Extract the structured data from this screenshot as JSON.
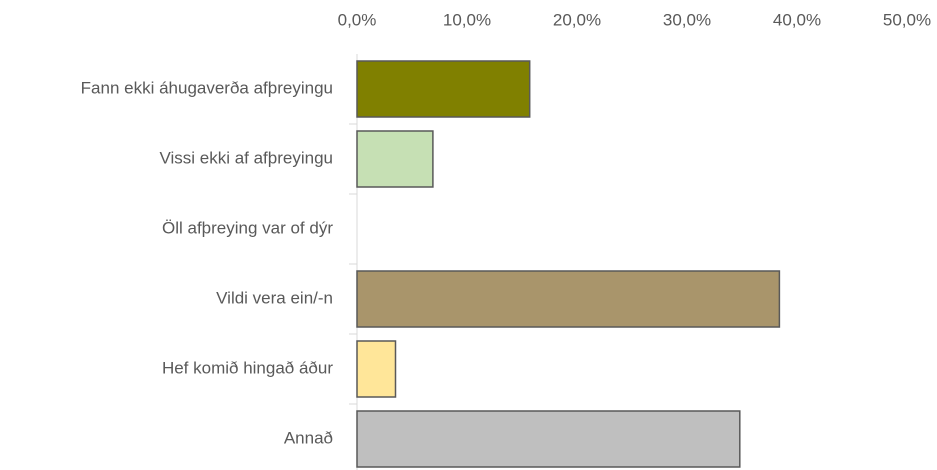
{
  "chart_data": {
    "type": "bar",
    "orientation": "horizontal",
    "categories": [
      "Fann ekki áhugaverða afþreyingu",
      "Vissi ekki af afþreyingu",
      "Öll afþreying var of dýr",
      "Vildi vera ein/-n",
      "Hef komið hingað áður",
      "Annað"
    ],
    "values": [
      15.7,
      6.9,
      0,
      38.4,
      3.5,
      34.8
    ],
    "colors": [
      "#808000",
      "#c6e0b4",
      "#d9d9d9",
      "#a9956b",
      "#ffe699",
      "#bfbfbf"
    ],
    "xlim": [
      0,
      50
    ],
    "xticks": [
      {
        "value": 0,
        "label": "0,0%"
      },
      {
        "value": 10,
        "label": "10,0%"
      },
      {
        "value": 20,
        "label": "20,0%"
      },
      {
        "value": 30,
        "label": "30,0%"
      },
      {
        "value": 40,
        "label": "40,0%"
      },
      {
        "value": 50,
        "label": "50,0%"
      }
    ],
    "grid": false
  }
}
